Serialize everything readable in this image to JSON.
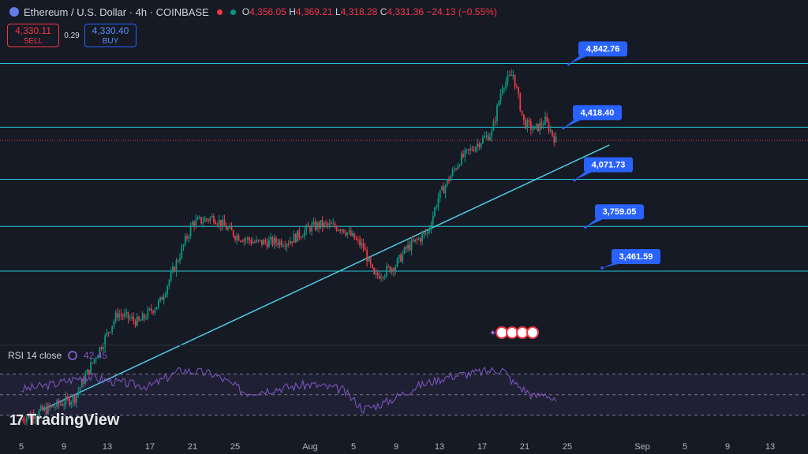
{
  "header": {
    "title": "Ethereum / U.S. Dollar · 4h · COINBASE",
    "ohlc": {
      "o_label": "O",
      "o": "4,356.05",
      "h_label": "H",
      "h": "4,369.21",
      "l_label": "L",
      "l": "4,318.28",
      "c_label": "C",
      "c": "4,331.36",
      "change": "−24.13 (−0.55%)"
    },
    "status_colors": [
      "#f23645",
      "#089981"
    ]
  },
  "trade": {
    "sell_price": "4,330.11",
    "sell_label": "SELL",
    "spread": "0.29",
    "buy_price": "4,330.40",
    "buy_label": "BUY"
  },
  "rsi": {
    "label": "RSI 14 close",
    "value": "42.45"
  },
  "logo": {
    "mark": "17",
    "name": "TradingView"
  },
  "colors": {
    "bg": "#161a25",
    "up": "#089981",
    "down": "#f23645",
    "level": "#26c6da",
    "callout": "#2962ff",
    "rsi": "#7e57c2"
  },
  "chart_data": {
    "type": "candlestick",
    "symbol": "Ethereum / U.S. Dollar",
    "timeframe": "4h",
    "ylim": [
      3000,
      4950
    ],
    "x_ticks": [
      "5",
      "9",
      "13",
      "17",
      "21",
      "25",
      "Aug",
      "5",
      "9",
      "13",
      "17",
      "21",
      "25",
      "Sep",
      "5",
      "9",
      "13"
    ],
    "levels": [
      {
        "value": 4842.76,
        "label": "4,842.76"
      },
      {
        "value": 4418.4,
        "label": "4,418.40"
      },
      {
        "value": 4071.73,
        "label": "4,071.73"
      },
      {
        "value": 3759.05,
        "label": "3,759.05"
      },
      {
        "value": 3461.59,
        "label": "3,461.59"
      }
    ],
    "price_path": [
      {
        "day": 0,
        "close": 2480
      },
      {
        "day": 3,
        "close": 2560
      },
      {
        "day": 5,
        "close": 2620
      },
      {
        "day": 7,
        "close": 2900
      },
      {
        "day": 9,
        "close": 3180
      },
      {
        "day": 11,
        "close": 3120
      },
      {
        "day": 13,
        "close": 3260
      },
      {
        "day": 15,
        "close": 3600
      },
      {
        "day": 16,
        "close": 3780
      },
      {
        "day": 18,
        "close": 3820
      },
      {
        "day": 20,
        "close": 3700
      },
      {
        "day": 22,
        "close": 3650
      },
      {
        "day": 25,
        "close": 3660
      },
      {
        "day": 27,
        "close": 3750
      },
      {
        "day": 28,
        "close": 3770
      },
      {
        "day": 30,
        "close": 3750
      },
      {
        "day": 32,
        "close": 3620
      },
      {
        "day": 33,
        "close": 3420
      },
      {
        "day": 35,
        "close": 3500
      },
      {
        "day": 36,
        "close": 3610
      },
      {
        "day": 38,
        "close": 3720
      },
      {
        "day": 39,
        "close": 3950
      },
      {
        "day": 41,
        "close": 4200
      },
      {
        "day": 43,
        "close": 4330
      },
      {
        "day": 44,
        "close": 4380
      },
      {
        "day": 45,
        "close": 4700
      },
      {
        "day": 46,
        "close": 4770
      },
      {
        "day": 47,
        "close": 4450
      },
      {
        "day": 48,
        "close": 4400
      },
      {
        "day": 49,
        "close": 4460
      },
      {
        "day": 50,
        "close": 4330
      }
    ],
    "rsi_path": [
      {
        "day": 0,
        "value": 55
      },
      {
        "day": 3,
        "value": 60
      },
      {
        "day": 6,
        "value": 68
      },
      {
        "day": 9,
        "value": 62
      },
      {
        "day": 12,
        "value": 58
      },
      {
        "day": 15,
        "value": 74
      },
      {
        "day": 18,
        "value": 70
      },
      {
        "day": 21,
        "value": 52
      },
      {
        "day": 24,
        "value": 56
      },
      {
        "day": 27,
        "value": 60
      },
      {
        "day": 30,
        "value": 55
      },
      {
        "day": 32,
        "value": 36
      },
      {
        "day": 34,
        "value": 42
      },
      {
        "day": 37,
        "value": 58
      },
      {
        "day": 40,
        "value": 68
      },
      {
        "day": 43,
        "value": 72
      },
      {
        "day": 45,
        "value": 75
      },
      {
        "day": 46,
        "value": 62
      },
      {
        "day": 48,
        "value": 48
      },
      {
        "day": 49,
        "value": 52
      },
      {
        "day": 50,
        "value": 42
      }
    ],
    "rsi_ylim": [
      20,
      85
    ],
    "rsi_bands": [
      70,
      50,
      30
    ],
    "trendline": {
      "from": {
        "day": 2,
        "price": 2540
      },
      "to": {
        "day": 55,
        "price": 4300
      }
    }
  }
}
